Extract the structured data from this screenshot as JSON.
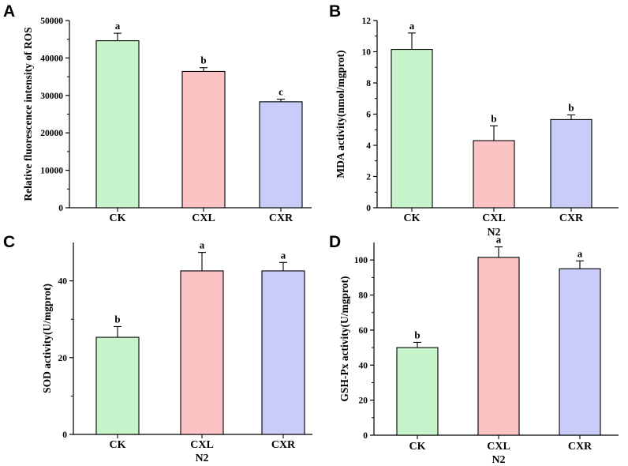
{
  "chart_data": [
    {
      "panel": "A",
      "type": "bar",
      "categories": [
        "CK",
        "CXL",
        "CXR"
      ],
      "values": [
        44600,
        36400,
        28300
      ],
      "errors": [
        2000,
        1000,
        700
      ],
      "significance": [
        "a",
        "b",
        "c"
      ],
      "colors": [
        "#c6f5cb",
        "#fbc3c3",
        "#c9cbf8"
      ],
      "ylabel": "Relative fluorescence intensity of ROS",
      "xlabel": "",
      "ylim": [
        0,
        50000
      ],
      "yticks": [
        0,
        10000,
        20000,
        30000,
        40000,
        50000
      ],
      "ytick_labels": [
        "0",
        "10000",
        "20000",
        "30000",
        "40000",
        "50000"
      ],
      "grid": false
    },
    {
      "panel": "B",
      "type": "bar",
      "categories": [
        "CK",
        "CXL",
        "CXR"
      ],
      "values": [
        10.15,
        4.3,
        5.65
      ],
      "errors": [
        1.05,
        0.95,
        0.3
      ],
      "significance": [
        "a",
        "b",
        "b"
      ],
      "colors": [
        "#c6f5cb",
        "#fbc3c3",
        "#c9cbf8"
      ],
      "ylabel": "MDA activity(nmol/mgprot)",
      "xlabel": "N2",
      "ylim": [
        0,
        12
      ],
      "yticks": [
        0,
        2,
        4,
        6,
        8,
        10,
        12
      ],
      "ytick_labels": [
        "0",
        "2",
        "4",
        "6",
        "8",
        "10",
        "12"
      ],
      "grid": false
    },
    {
      "panel": "C",
      "type": "bar",
      "categories": [
        "CK",
        "CXL",
        "CXR"
      ],
      "values": [
        25.3,
        42.6,
        42.6
      ],
      "errors": [
        2.8,
        4.8,
        2.2
      ],
      "significance": [
        "b",
        "a",
        "a"
      ],
      "colors": [
        "#c6f5cb",
        "#fbc3c3",
        "#c9cbf8"
      ],
      "ylabel": "SOD activity(U/mgprot)",
      "xlabel": "N2",
      "ylim": [
        0,
        50
      ],
      "yticks": [
        0,
        20,
        40
      ],
      "ytick_labels": [
        "0",
        "20",
        "40"
      ],
      "grid": false
    },
    {
      "panel": "D",
      "type": "bar",
      "categories": [
        "CK",
        "CXL",
        "CXR"
      ],
      "values": [
        50,
        101.5,
        95
      ],
      "errors": [
        3,
        6,
        4.5
      ],
      "significance": [
        "b",
        "a",
        "a"
      ],
      "colors": [
        "#c6f5cb",
        "#fbc3c3",
        "#c9cbf8"
      ],
      "ylabel": "GSH-Px activity(U/mgprot)",
      "xlabel": "N2",
      "ylim": [
        0,
        110
      ],
      "yticks": [
        0,
        20,
        40,
        60,
        80,
        100
      ],
      "ytick_labels": [
        "0",
        "20",
        "40",
        "60",
        "80",
        "100"
      ],
      "grid": false
    }
  ]
}
